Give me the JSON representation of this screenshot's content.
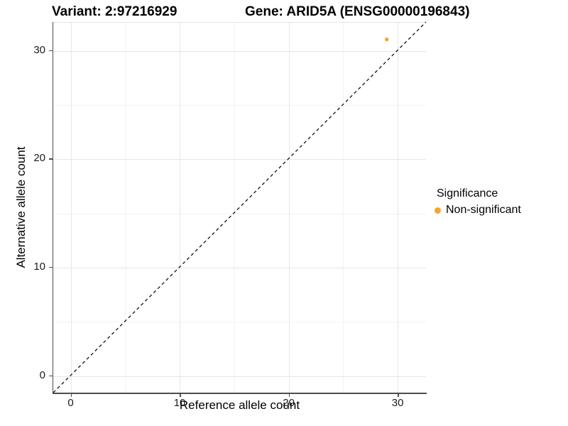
{
  "figure": {
    "titles": {
      "variant": "Variant: 2:97216929",
      "gene": "Gene: ARID5A (ENSG00000196843)"
    },
    "x_axis": {
      "label": "Reference allele count"
    },
    "y_axis": {
      "label": "Alternative allele count"
    },
    "legend": {
      "title": "Significance",
      "items": [
        {
          "label": "Non-significant",
          "color": "#F9A32B"
        }
      ]
    }
  },
  "chart_data": {
    "type": "scatter",
    "title": "Variant: 2:97216929   Gene: ARID5A (ENSG00000196843)",
    "xlabel": "Reference allele count",
    "ylabel": "Alternative allele count",
    "xlim": [
      -1.6,
      32.6
    ],
    "ylim": [
      -1.6,
      32.6
    ],
    "xticks": [
      0,
      10,
      20,
      30
    ],
    "yticks": [
      0,
      10,
      20,
      30
    ],
    "xticks_minor": [
      5,
      15,
      25
    ],
    "yticks_minor": [
      5,
      15,
      25
    ],
    "grid": true,
    "legend_position": "right",
    "series": [
      {
        "name": "Non-significant",
        "color": "#F9A32B",
        "points": [
          {
            "x": 29,
            "y": 31
          }
        ]
      }
    ],
    "reference_line": {
      "type": "identity",
      "equation": "y = x",
      "style": "dashed",
      "color": "#111111"
    },
    "colors": {
      "point": "#F9A32B",
      "grid_major": "#E6E6E6",
      "grid_minor": "#F2F2F2",
      "axis_line": "#4D4D4D",
      "dashed_line": "#111111"
    }
  }
}
